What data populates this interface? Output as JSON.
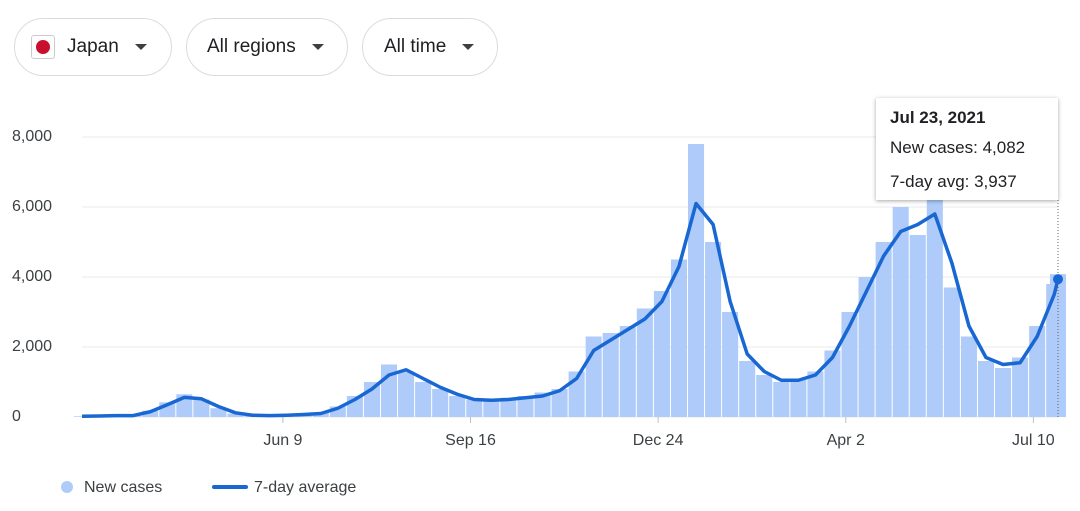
{
  "controls": {
    "country": "Japan",
    "region": "All regions",
    "time": "All time"
  },
  "chart_data": {
    "type": "bar-line",
    "x": [
      0,
      9,
      18,
      27,
      36,
      45,
      54,
      63,
      72,
      81,
      90,
      99,
      108,
      117,
      126,
      135,
      144,
      153,
      162,
      171,
      180,
      189,
      198,
      207,
      216,
      225,
      234,
      243,
      252,
      261,
      270,
      279,
      288,
      297,
      306,
      315,
      324,
      333,
      342,
      351,
      360,
      369,
      378,
      387,
      396,
      405,
      414,
      423,
      432,
      441,
      450,
      459,
      468,
      477,
      486,
      495,
      504,
      513,
      515
    ],
    "xlim": [
      0,
      515
    ],
    "xticks": [
      {
        "value": 106,
        "label": "Jun 9"
      },
      {
        "value": 205,
        "label": "Sep 16"
      },
      {
        "value": 304,
        "label": "Dec 24"
      },
      {
        "value": 403,
        "label": "Apr 2"
      },
      {
        "value": 502,
        "label": "Jul 10"
      }
    ],
    "ylim": [
      0,
      9000
    ],
    "yticks": [
      0,
      {
        "value": 2000,
        "label": "2,000"
      },
      {
        "value": 4000,
        "label": "4,000"
      },
      {
        "value": 6000,
        "label": "6,000"
      },
      {
        "value": 8000,
        "label": "8,000"
      }
    ],
    "grid": true,
    "series": [
      {
        "name": "New cases",
        "color": "#aecbfa",
        "values": [
          20,
          30,
          45,
          50,
          180,
          420,
          650,
          500,
          250,
          100,
          40,
          45,
          60,
          90,
          130,
          300,
          600,
          1000,
          1500,
          1300,
          1000,
          800,
          600,
          500,
          500,
          550,
          600,
          700,
          800,
          1300,
          2300,
          2400,
          2600,
          3100,
          3600,
          4500,
          7800,
          5000,
          3000,
          1600,
          1200,
          1000,
          1100,
          1300,
          1900,
          3000,
          4000,
          5000,
          6000,
          5200,
          6500,
          3700,
          2300,
          1600,
          1400,
          1700,
          2600,
          3800,
          4082
        ]
      },
      {
        "name": "7-day average",
        "color": "#1967d2",
        "values": [
          20,
          30,
          40,
          40,
          150,
          350,
          560,
          520,
          300,
          120,
          50,
          40,
          50,
          70,
          100,
          250,
          500,
          800,
          1200,
          1350,
          1100,
          850,
          650,
          500,
          480,
          500,
          550,
          600,
          750,
          1100,
          1900,
          2200,
          2500,
          2800,
          3300,
          4300,
          6100,
          5500,
          3300,
          1800,
          1300,
          1050,
          1050,
          1200,
          1700,
          2600,
          3600,
          4600,
          5300,
          5500,
          5800,
          4400,
          2600,
          1700,
          1500,
          1550,
          2300,
          3500,
          3937
        ]
      }
    ],
    "tooltip": {
      "date": "Jul 23, 2021",
      "lines": [
        "New cases: 4,082",
        "7-day avg: 3,937"
      ]
    }
  }
}
